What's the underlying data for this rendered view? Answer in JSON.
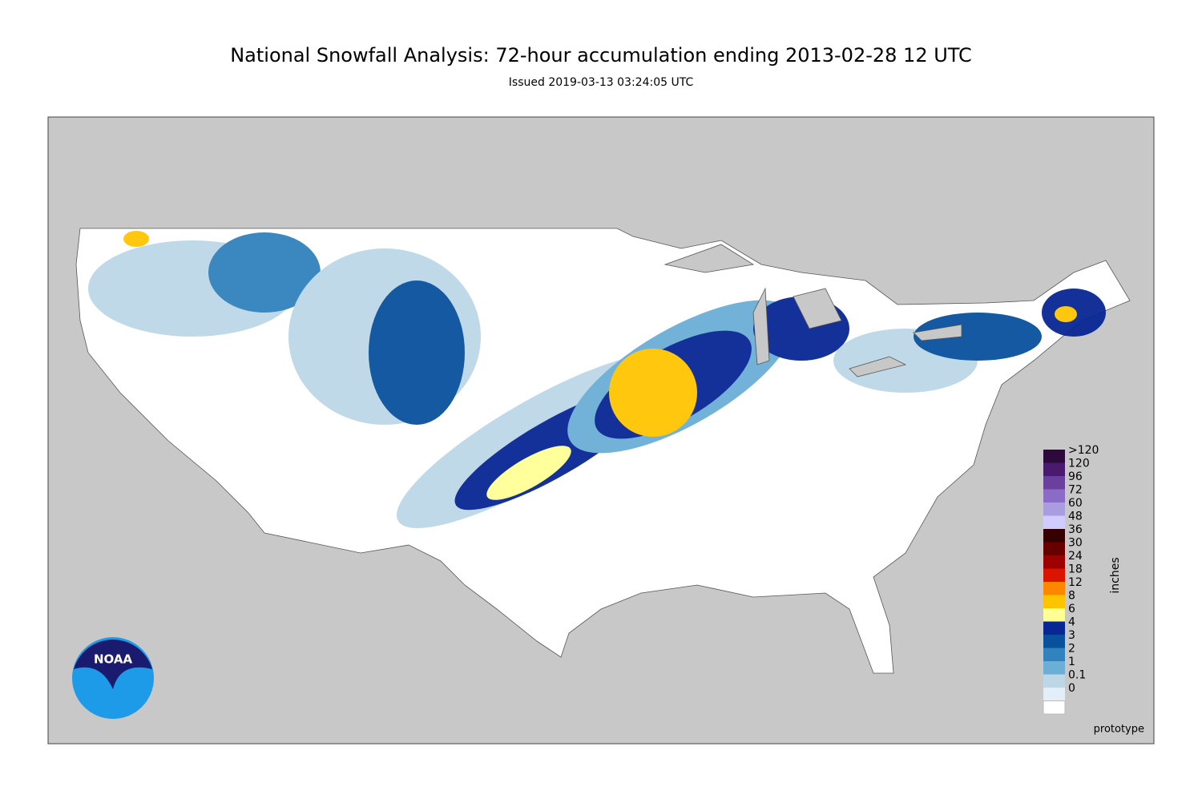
{
  "title": "National Snowfall Analysis: 72-hour accumulation ending 2013-02-28 12 UTC",
  "subtitle": "Issued 2019-03-13 03:24:05 UTC",
  "legend": {
    "title": "inches",
    "items": [
      {
        "label": ">120",
        "color": "#2e0a3c"
      },
      {
        "label": "120",
        "color": "#4a1a6e"
      },
      {
        "label": "96",
        "color": "#6a3f9e"
      },
      {
        "label": "72",
        "color": "#8a6cc6"
      },
      {
        "label": "60",
        "color": "#a99de0"
      },
      {
        "label": "48",
        "color": "#d0ccff"
      },
      {
        "label": "36",
        "color": "#360000"
      },
      {
        "label": "30",
        "color": "#690000"
      },
      {
        "label": "24",
        "color": "#9e0000"
      },
      {
        "label": "18",
        "color": "#db1400"
      },
      {
        "label": "12",
        "color": "#ff8700"
      },
      {
        "label": "8",
        "color": "#ffc400"
      },
      {
        "label": "6",
        "color": "#ffff96"
      },
      {
        "label": "4",
        "color": "#082694"
      },
      {
        "label": "3",
        "color": "#08519c"
      },
      {
        "label": "2",
        "color": "#3182bd"
      },
      {
        "label": "1",
        "color": "#6baed6"
      },
      {
        "label": "0.1",
        "color": "#bdd7e7"
      },
      {
        "label": "0",
        "color": "#e4eef9"
      }
    ],
    "base_color": "#ffffff"
  },
  "note": "prototype",
  "logo": "NOAA"
}
